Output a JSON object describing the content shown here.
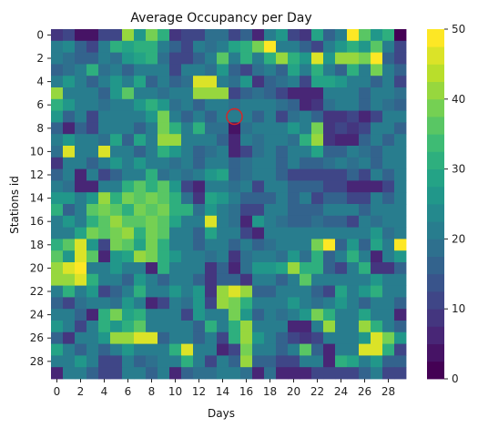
{
  "chart_data": {
    "type": "heatmap",
    "title": "Average Occupancy per Day",
    "xlabel": "Days",
    "ylabel": "Stations id",
    "xlim": [
      0,
      29
    ],
    "ylim": [
      0,
      29
    ],
    "vmin": 0,
    "vmax": 50,
    "x_tick_labels": [
      "0",
      "2",
      "4",
      "6",
      "8",
      "10",
      "12",
      "14",
      "16",
      "18",
      "20",
      "22",
      "24",
      "26",
      "28"
    ],
    "y_tick_labels": [
      "0",
      "2",
      "4",
      "6",
      "8",
      "10",
      "12",
      "14",
      "16",
      "18",
      "20",
      "22",
      "24",
      "26",
      "28"
    ],
    "colorbar_ticks": [
      "0",
      "10",
      "20",
      "30",
      "40",
      "50"
    ],
    "colormap": "viridis",
    "colorbar_levels": 20,
    "highlight": {
      "day": 15,
      "station": 7,
      "color": "#d62728"
    },
    "values": [
      [
        8,
        12,
        3,
        4,
        10,
        12,
        40,
        25,
        38,
        30,
        8,
        10,
        10,
        18,
        18,
        10,
        15,
        6,
        22,
        25,
        10,
        8,
        28,
        15,
        20,
        48,
        35,
        25,
        30,
        2
      ],
      [
        22,
        24,
        15,
        10,
        20,
        32,
        28,
        30,
        32,
        22,
        15,
        12,
        20,
        18,
        20,
        28,
        30,
        38,
        48,
        22,
        22,
        15,
        10,
        22,
        25,
        30,
        25,
        35,
        22,
        10
      ],
      [
        20,
        18,
        15,
        15,
        22,
        18,
        25,
        28,
        30,
        18,
        10,
        12,
        15,
        20,
        35,
        22,
        32,
        22,
        30,
        40,
        30,
        25,
        45,
        25,
        40,
        40,
        38,
        48,
        15,
        12
      ],
      [
        15,
        18,
        20,
        30,
        18,
        20,
        15,
        22,
        20,
        22,
        12,
        22,
        20,
        18,
        25,
        15,
        10,
        18,
        22,
        15,
        28,
        22,
        30,
        20,
        15,
        30,
        20,
        38,
        20,
        15
      ],
      [
        22,
        25,
        20,
        15,
        20,
        25,
        20,
        28,
        15,
        22,
        15,
        18,
        45,
        45,
        20,
        18,
        25,
        8,
        15,
        18,
        20,
        12,
        28,
        28,
        25,
        20,
        20,
        15,
        20,
        12
      ],
      [
        40,
        22,
        22,
        20,
        15,
        25,
        35,
        22,
        20,
        18,
        22,
        20,
        40,
        40,
        40,
        12,
        15,
        18,
        15,
        10,
        5,
        5,
        5,
        20,
        22,
        20,
        15,
        20,
        22,
        18
      ],
      [
        30,
        25,
        20,
        22,
        18,
        22,
        20,
        25,
        30,
        25,
        18,
        20,
        15,
        20,
        20,
        18,
        20,
        22,
        20,
        18,
        15,
        5,
        8,
        18,
        22,
        20,
        15,
        22,
        18,
        15
      ],
      [
        25,
        15,
        20,
        12,
        20,
        20,
        22,
        20,
        25,
        38,
        22,
        15,
        20,
        15,
        20,
        20,
        22,
        15,
        20,
        12,
        18,
        20,
        15,
        8,
        8,
        10,
        5,
        10,
        20,
        20
      ],
      [
        15,
        5,
        15,
        10,
        20,
        20,
        22,
        15,
        20,
        38,
        32,
        22,
        30,
        18,
        18,
        3,
        18,
        20,
        20,
        22,
        25,
        20,
        38,
        8,
        10,
        8,
        10,
        20,
        22,
        15
      ],
      [
        22,
        25,
        20,
        20,
        18,
        28,
        15,
        28,
        22,
        40,
        40,
        22,
        22,
        20,
        15,
        5,
        20,
        18,
        22,
        20,
        18,
        30,
        40,
        8,
        5,
        5,
        15,
        20,
        15,
        20
      ],
      [
        18,
        45,
        22,
        20,
        45,
        22,
        20,
        15,
        22,
        30,
        25,
        20,
        15,
        18,
        20,
        5,
        12,
        18,
        20,
        15,
        22,
        20,
        28,
        15,
        15,
        20,
        18,
        15,
        20,
        20
      ],
      [
        8,
        20,
        22,
        15,
        20,
        25,
        20,
        25,
        20,
        20,
        18,
        22,
        15,
        20,
        20,
        15,
        18,
        20,
        22,
        15,
        20,
        15,
        15,
        18,
        20,
        18,
        20,
        15,
        20,
        22
      ],
      [
        15,
        22,
        5,
        20,
        12,
        15,
        20,
        22,
        30,
        18,
        20,
        18,
        20,
        25,
        28,
        15,
        18,
        20,
        20,
        15,
        12,
        12,
        10,
        12,
        10,
        15,
        12,
        20,
        15,
        22
      ],
      [
        20,
        18,
        5,
        5,
        22,
        20,
        32,
        35,
        30,
        35,
        25,
        12,
        5,
        20,
        20,
        18,
        20,
        12,
        20,
        22,
        15,
        15,
        15,
        10,
        10,
        5,
        5,
        5,
        10,
        20
      ],
      [
        25,
        25,
        20,
        25,
        40,
        30,
        38,
        35,
        38,
        35,
        30,
        18,
        8,
        28,
        25,
        20,
        15,
        15,
        15,
        22,
        15,
        20,
        12,
        15,
        15,
        12,
        12,
        20,
        15,
        20
      ],
      [
        30,
        15,
        20,
        35,
        38,
        35,
        30,
        38,
        35,
        38,
        30,
        30,
        18,
        25,
        20,
        18,
        10,
        10,
        22,
        22,
        15,
        15,
        15,
        20,
        22,
        20,
        15,
        22,
        22,
        20
      ],
      [
        20,
        25,
        20,
        32,
        35,
        40,
        35,
        35,
        38,
        35,
        28,
        22,
        20,
        45,
        22,
        18,
        5,
        25,
        20,
        18,
        15,
        15,
        18,
        15,
        15,
        12,
        22,
        18,
        22,
        20
      ],
      [
        22,
        20,
        28,
        38,
        35,
        38,
        40,
        30,
        38,
        35,
        20,
        20,
        15,
        28,
        20,
        20,
        10,
        5,
        20,
        22,
        20,
        22,
        20,
        22,
        20,
        20,
        22,
        25,
        18,
        20
      ],
      [
        32,
        35,
        45,
        25,
        10,
        38,
        35,
        28,
        38,
        30,
        20,
        22,
        15,
        22,
        20,
        15,
        22,
        15,
        18,
        20,
        20,
        22,
        38,
        48,
        15,
        25,
        15,
        28,
        20,
        48
      ],
      [
        35,
        25,
        45,
        35,
        5,
        25,
        28,
        40,
        38,
        30,
        25,
        22,
        20,
        18,
        22,
        8,
        18,
        22,
        20,
        18,
        25,
        18,
        30,
        15,
        20,
        30,
        20,
        5,
        22,
        25
      ],
      [
        40,
        45,
        48,
        22,
        20,
        25,
        22,
        20,
        5,
        30,
        22,
        20,
        20,
        8,
        15,
        5,
        18,
        25,
        25,
        28,
        40,
        30,
        30,
        15,
        12,
        20,
        30,
        8,
        8,
        15
      ],
      [
        40,
        42,
        45,
        30,
        20,
        22,
        15,
        25,
        20,
        15,
        22,
        20,
        15,
        8,
        15,
        15,
        8,
        20,
        22,
        15,
        20,
        35,
        20,
        20,
        20,
        22,
        22,
        25,
        20,
        22
      ],
      [
        20,
        30,
        20,
        25,
        12,
        15,
        20,
        30,
        20,
        22,
        25,
        20,
        25,
        8,
        40,
        45,
        40,
        15,
        15,
        20,
        20,
        22,
        15,
        12,
        28,
        20,
        25,
        30,
        22,
        20
      ],
      [
        15,
        10,
        18,
        20,
        22,
        18,
        25,
        22,
        5,
        10,
        22,
        18,
        25,
        10,
        40,
        38,
        30,
        22,
        20,
        20,
        25,
        20,
        18,
        22,
        25,
        20,
        15,
        22,
        20,
        15
      ],
      [
        22,
        20,
        15,
        5,
        30,
        38,
        28,
        30,
        20,
        20,
        20,
        12,
        25,
        22,
        20,
        38,
        25,
        15,
        20,
        18,
        20,
        25,
        38,
        30,
        20,
        20,
        28,
        20,
        22,
        5
      ],
      [
        25,
        20,
        10,
        20,
        32,
        25,
        32,
        35,
        20,
        20,
        20,
        22,
        15,
        30,
        20,
        30,
        40,
        20,
        20,
        22,
        5,
        5,
        20,
        40,
        20,
        20,
        40,
        30,
        20,
        15
      ],
      [
        15,
        8,
        20,
        22,
        25,
        40,
        42,
        45,
        45,
        15,
        20,
        22,
        15,
        22,
        12,
        32,
        42,
        25,
        20,
        15,
        10,
        8,
        12,
        20,
        20,
        22,
        25,
        45,
        38,
        25
      ],
      [
        28,
        20,
        15,
        22,
        15,
        20,
        25,
        22,
        20,
        22,
        30,
        45,
        20,
        22,
        5,
        12,
        38,
        22,
        22,
        15,
        20,
        35,
        15,
        5,
        20,
        20,
        45,
        45,
        30,
        10
      ],
      [
        20,
        22,
        25,
        20,
        12,
        12,
        20,
        15,
        18,
        22,
        20,
        30,
        22,
        12,
        20,
        15,
        42,
        15,
        15,
        12,
        12,
        20,
        22,
        5,
        30,
        28,
        20,
        25,
        15,
        15
      ],
      [
        5,
        20,
        20,
        15,
        10,
        12,
        22,
        20,
        15,
        22,
        5,
        15,
        18,
        18,
        22,
        22,
        18,
        5,
        18,
        5,
        5,
        5,
        12,
        12,
        10,
        12,
        15,
        20,
        10,
        12
      ]
    ]
  }
}
